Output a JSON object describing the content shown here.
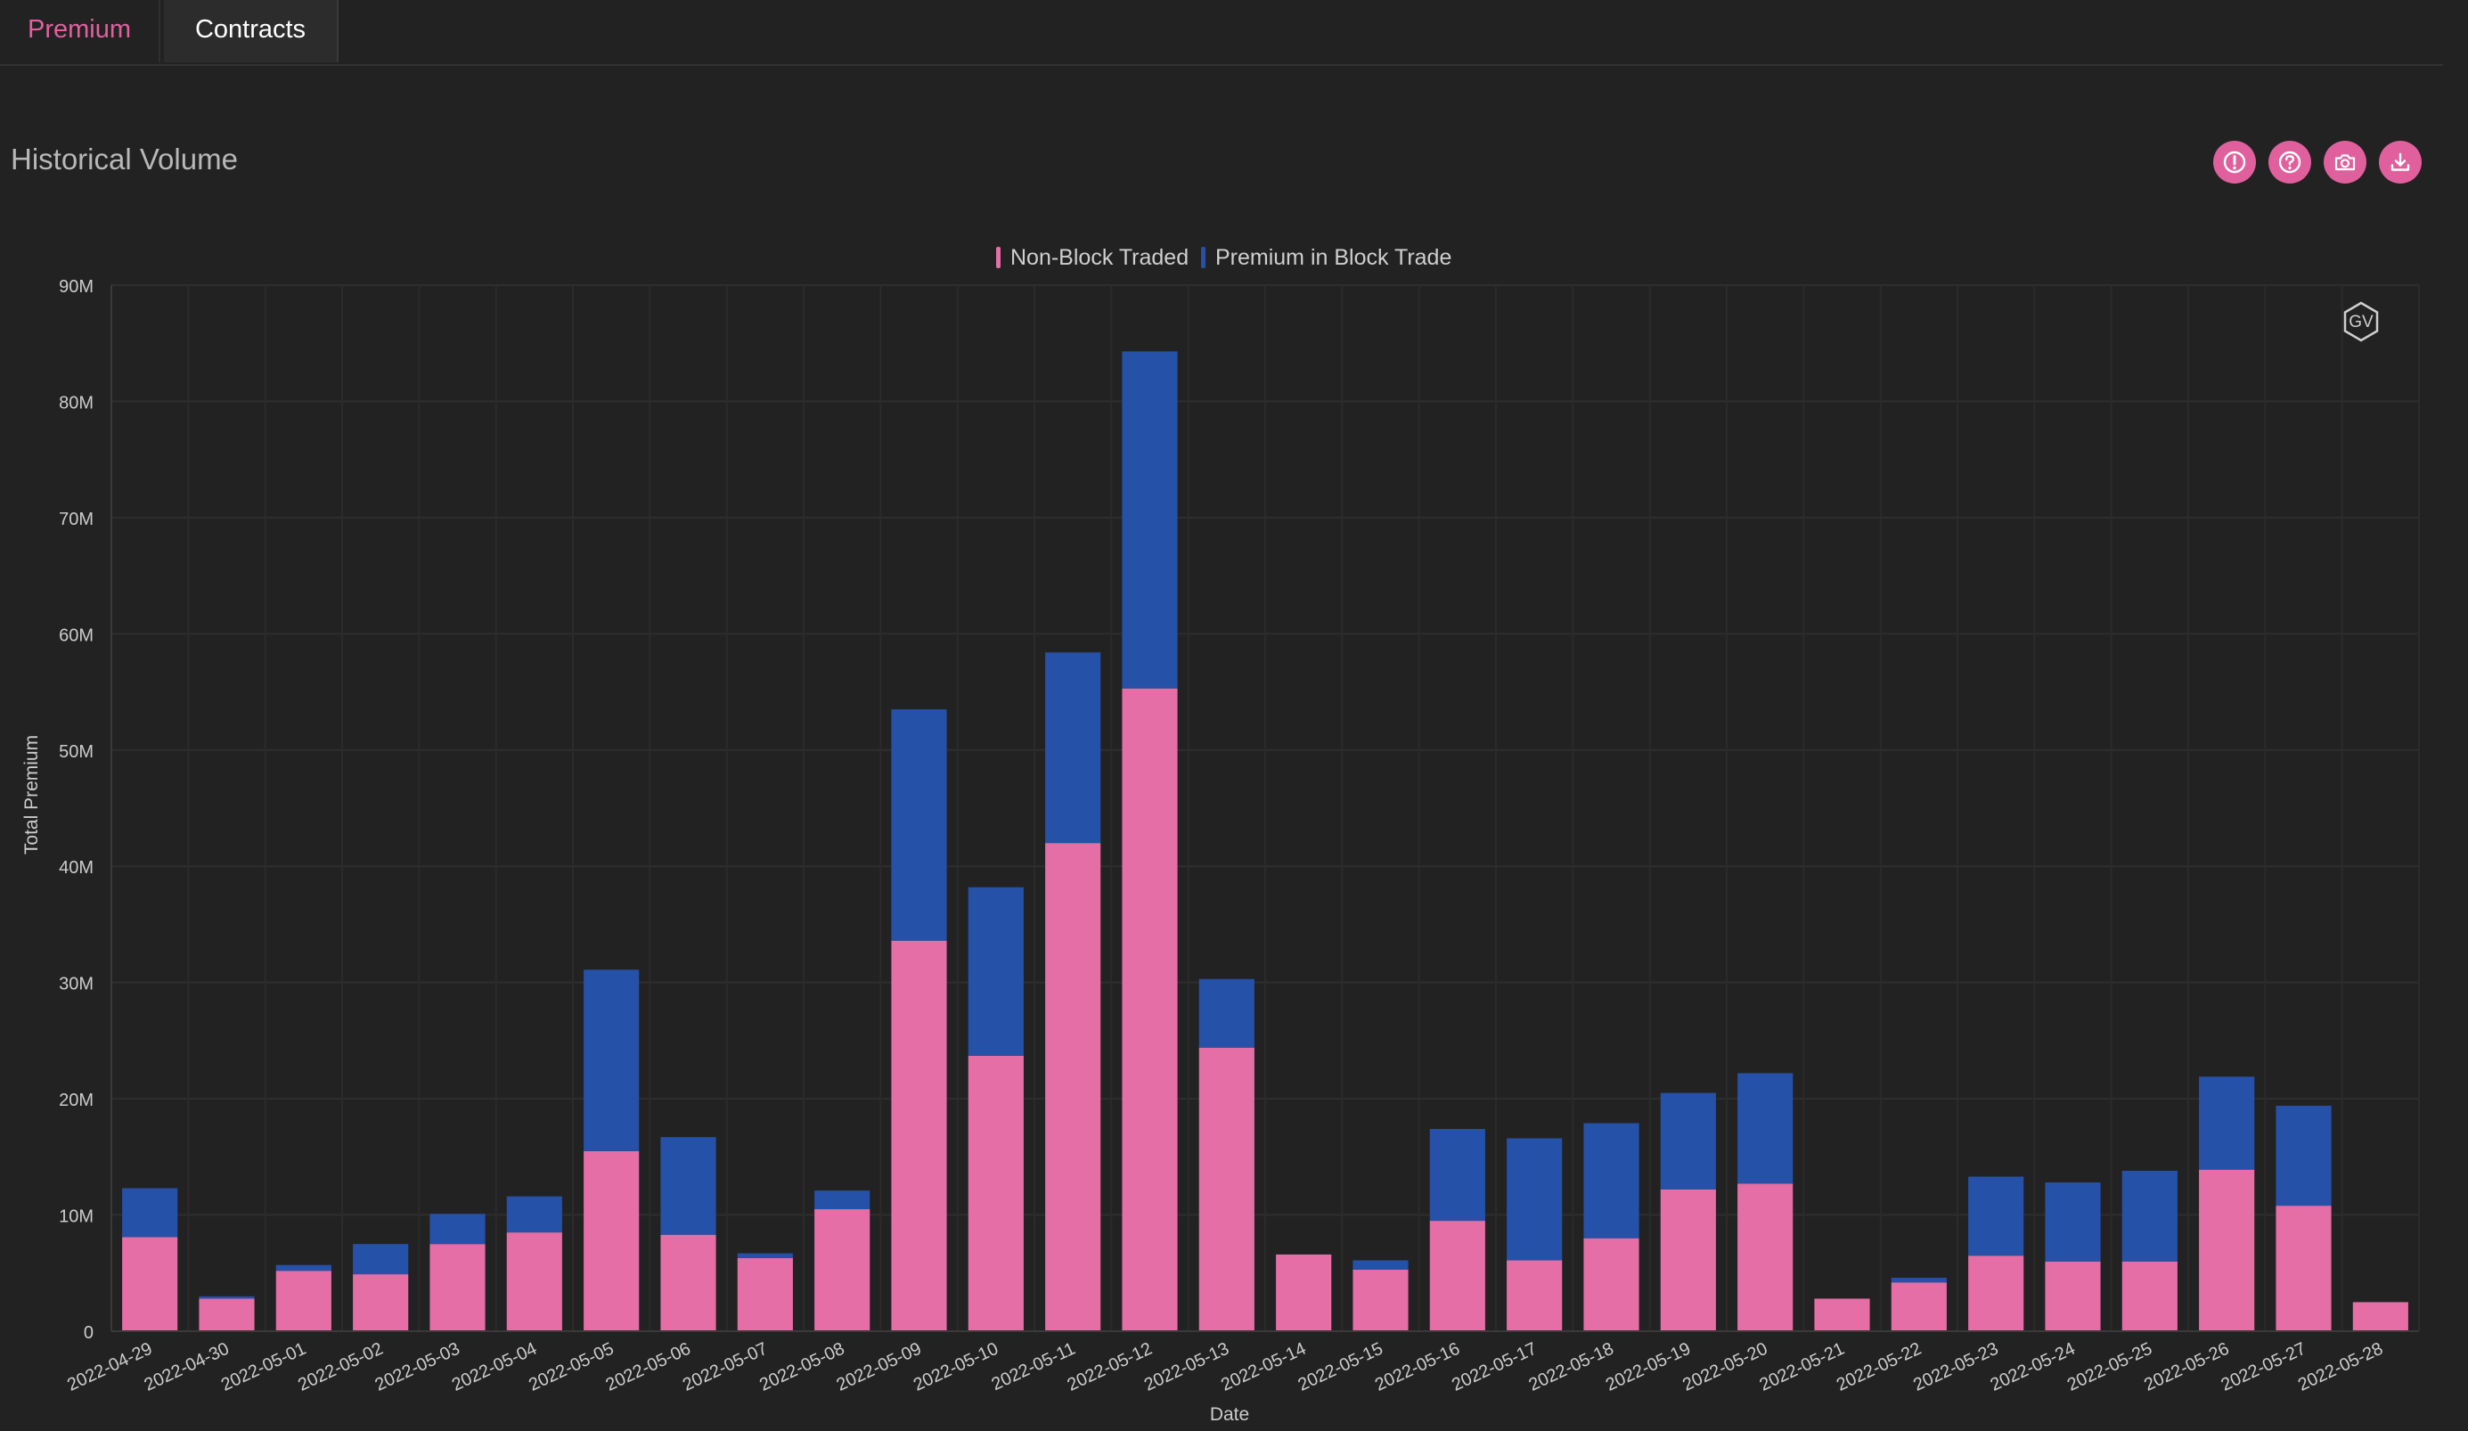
{
  "tabs": [
    {
      "label": "Premium",
      "active": true
    },
    {
      "label": "Contracts",
      "active": false
    }
  ],
  "header": {
    "title": "Historical Volume"
  },
  "toolbar": {
    "icons": [
      "info-icon",
      "help-icon",
      "camera-icon",
      "download-icon"
    ]
  },
  "watermark": {
    "text": "GV"
  },
  "colors": {
    "non_block": "#e46ea5",
    "block": "#2651a8",
    "accent": "#e0609d",
    "background": "#222222"
  },
  "chart_data": {
    "type": "bar",
    "stacked": true,
    "categories": [
      "2022-04-29",
      "2022-04-30",
      "2022-05-01",
      "2022-05-02",
      "2022-05-03",
      "2022-05-04",
      "2022-05-05",
      "2022-05-06",
      "2022-05-07",
      "2022-05-08",
      "2022-05-09",
      "2022-05-10",
      "2022-05-11",
      "2022-05-12",
      "2022-05-13",
      "2022-05-14",
      "2022-05-15",
      "2022-05-16",
      "2022-05-17",
      "2022-05-18",
      "2022-05-19",
      "2022-05-20",
      "2022-05-21",
      "2022-05-22",
      "2022-05-23",
      "2022-05-24",
      "2022-05-25",
      "2022-05-26",
      "2022-05-27",
      "2022-05-28"
    ],
    "series": [
      {
        "name": "Non-Block Traded",
        "color": "#e46ea5",
        "values": [
          8.1,
          2.8,
          5.2,
          4.9,
          7.5,
          8.5,
          15.5,
          8.3,
          6.3,
          10.5,
          33.6,
          23.7,
          42.0,
          55.3,
          24.4,
          6.6,
          5.3,
          9.5,
          6.1,
          8.0,
          12.2,
          12.7,
          2.8,
          4.2,
          6.5,
          6.0,
          6.0,
          13.9,
          10.8,
          2.5
        ]
      },
      {
        "name": "Premium in Block Trade",
        "color": "#2651a8",
        "values": [
          4.2,
          0.2,
          0.5,
          2.6,
          2.6,
          3.1,
          15.6,
          8.4,
          0.4,
          1.6,
          19.9,
          14.5,
          16.4,
          29.0,
          5.9,
          0.0,
          0.8,
          7.9,
          10.5,
          9.9,
          8.3,
          9.5,
          0.0,
          0.4,
          6.8,
          6.8,
          7.8,
          8.0,
          8.6,
          0.0
        ]
      }
    ],
    "y_ticks": [
      "0",
      "10M",
      "20M",
      "30M",
      "40M",
      "50M",
      "60M",
      "70M",
      "80M",
      "90M"
    ],
    "ylim": [
      0,
      90
    ],
    "y_unit": "M",
    "xlabel": "Date",
    "ylabel": "Total Premium",
    "legend_position": "top-center",
    "grid": true
  }
}
